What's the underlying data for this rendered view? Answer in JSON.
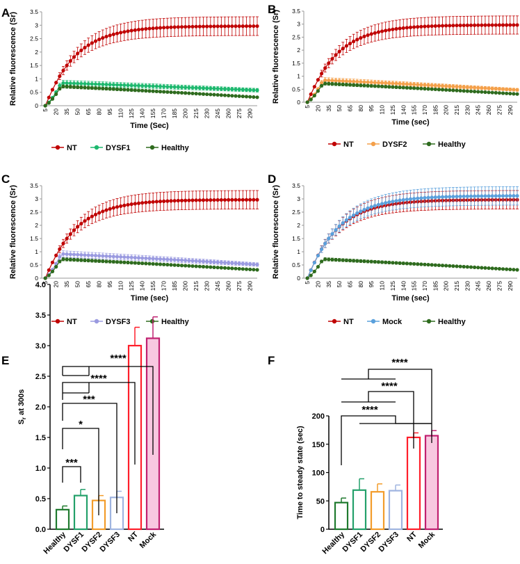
{
  "colors": {
    "NT": "#c00000",
    "Healthy": "#2e6b1e",
    "DYSF1": "#1db86e",
    "DYSF2": "#f4a04a",
    "DYSF3": "#9a9ae0",
    "Mock": "#5aa0dc",
    "bar_healthy": "#1f7a2e",
    "bar_dysf1": "#23a06a",
    "bar_dysf2": "#f39c2a",
    "bar_dysf3": "#9fb4e0",
    "bar_nt": "#ff1e2a",
    "bar_mock": "#c02070",
    "bar_mock_fill": "#f8c8e0"
  },
  "chart_data": [
    {
      "panel": "A",
      "type": "line",
      "ylabel": "Relative fluorescence (Sr)",
      "xlabel": "Time (Sec)",
      "ylim": [
        0,
        3.5
      ],
      "yticks": [
        "0",
        "0.5",
        "1",
        "1.5",
        "2",
        "2.5",
        "3",
        "3.5"
      ],
      "xticks": [
        "5",
        "20",
        "35",
        "50",
        "65",
        "80",
        "95",
        "110",
        "125",
        "140",
        "155",
        "170",
        "185",
        "200",
        "215",
        "230",
        "245",
        "260",
        "275",
        "290"
      ],
      "x_range": [
        0,
        300
      ],
      "series": [
        {
          "name": "NT",
          "key": "NT",
          "plateau": 2.97,
          "tau": 42,
          "err": 0.35
        },
        {
          "name": "DYSF1",
          "key": "DYSF1",
          "peak": 0.85,
          "end": 0.58,
          "err": 0.1
        },
        {
          "name": "Healthy",
          "key": "Healthy",
          "peak": 0.72,
          "end": 0.32,
          "err": 0.06
        }
      ],
      "legend": [
        "NT",
        "DYSF1",
        "Healthy"
      ]
    },
    {
      "panel": "B",
      "type": "line",
      "ylabel": "Relative fluorescence (Sr)",
      "xlabel": "Time (sec)",
      "ylim": [
        0,
        3.5
      ],
      "yticks": [
        "0",
        "0.5",
        "1",
        "1.5",
        "2",
        "2.5",
        "3",
        "3.5"
      ],
      "xticks": [
        "5",
        "20",
        "35",
        "50",
        "65",
        "80",
        "95",
        "110",
        "125",
        "140",
        "155",
        "170",
        "185",
        "200",
        "215",
        "230",
        "245",
        "260",
        "275",
        "290"
      ],
      "x_range": [
        0,
        300
      ],
      "series": [
        {
          "name": "NT",
          "key": "NT",
          "plateau": 2.97,
          "tau": 42,
          "err": 0.35
        },
        {
          "name": "DYSF2",
          "key": "DYSF2",
          "peak": 0.85,
          "end": 0.48,
          "err": 0.1
        },
        {
          "name": "Healthy",
          "key": "Healthy",
          "peak": 0.72,
          "end": 0.32,
          "err": 0.06
        }
      ],
      "legend": [
        "NT",
        "DYSF2",
        "Healthy"
      ]
    },
    {
      "panel": "C",
      "type": "line",
      "ylabel": "Relative fluorescence (Sr)",
      "xlabel": "Time (sec)",
      "ylim": [
        0,
        3.5
      ],
      "yticks": [
        "0",
        "0.5",
        "1",
        "1.5",
        "2",
        "2.5",
        "3",
        "3.5"
      ],
      "xticks": [
        "5",
        "20",
        "35",
        "50",
        "65",
        "80",
        "95",
        "110",
        "125",
        "140",
        "155",
        "170",
        "185",
        "200",
        "215",
        "230",
        "245",
        "260",
        "275",
        "290"
      ],
      "x_range": [
        0,
        300
      ],
      "series": [
        {
          "name": "NT",
          "key": "NT",
          "plateau": 2.97,
          "tau": 42,
          "err": 0.35
        },
        {
          "name": "DYSF3",
          "key": "DYSF3",
          "peak": 0.92,
          "end": 0.52,
          "err": 0.12
        },
        {
          "name": "Healthy",
          "key": "Healthy",
          "peak": 0.72,
          "end": 0.32,
          "err": 0.06
        }
      ],
      "legend": [
        "NT",
        "DYSF3",
        "Healthy"
      ]
    },
    {
      "panel": "D",
      "type": "line",
      "ylabel": "Relative fluorescence (Sr)",
      "xlabel": "Time (sec)",
      "ylim": [
        0,
        3.5
      ],
      "yticks": [
        "0",
        "0.5",
        "1",
        "1.5",
        "2",
        "2.5",
        "3",
        "3.5"
      ],
      "xticks": [
        "5",
        "20",
        "35",
        "50",
        "65",
        "80",
        "95",
        "110",
        "125",
        "140",
        "155",
        "170",
        "185",
        "200",
        "215",
        "230",
        "245",
        "260",
        "275",
        "290"
      ],
      "x_range": [
        0,
        300
      ],
      "series": [
        {
          "name": "NT",
          "key": "NT",
          "plateau": 2.97,
          "tau": 42,
          "err": 0.35
        },
        {
          "name": "Mock",
          "key": "Mock",
          "plateau": 3.12,
          "tau": 45,
          "err": 0.35
        },
        {
          "name": "Healthy",
          "key": "Healthy",
          "peak": 0.72,
          "end": 0.32,
          "err": 0.06
        }
      ],
      "legend": [
        "NT",
        "Mock",
        "Healthy"
      ]
    },
    {
      "panel": "E",
      "type": "bar",
      "ylabel": "Sr at 300s",
      "ylabel_main": "S",
      "ylabel_sub": "r",
      "ylabel_rest": " at 300s",
      "ylim": [
        0,
        4.0
      ],
      "yticks": [
        "0.0",
        "0.5",
        "1.0",
        "1.5",
        "2.0",
        "2.5",
        "3.0",
        "3.5",
        "4.0"
      ],
      "categories": [
        "Healthy",
        "DYSF1",
        "DYSF2",
        "DYSF3",
        "NT",
        "Mock"
      ],
      "values": [
        0.32,
        0.55,
        0.47,
        0.52,
        3.0,
        3.12
      ],
      "errors": [
        0.06,
        0.1,
        0.08,
        0.1,
        0.3,
        0.35
      ],
      "significance": [
        {
          "label": "***",
          "from": [
            0
          ],
          "to": 1
        },
        {
          "label": "*",
          "from": [
            0
          ],
          "to": 2
        },
        {
          "label": "***",
          "from": [
            0
          ],
          "to": 3
        },
        {
          "label": "****",
          "from": [
            0,
            1
          ],
          "to": 4
        },
        {
          "label": "****",
          "from": [
            0,
            1
          ],
          "to": 5
        }
      ]
    },
    {
      "panel": "F",
      "type": "bar",
      "ylabel": "Time to steady state (sec)",
      "ylim": [
        0,
        200
      ],
      "yticks": [
        "0",
        "50",
        "100",
        "150",
        "200"
      ],
      "categories": [
        "Healthy",
        "DYSF1",
        "DYSF2",
        "DYSF3",
        "NT",
        "Mock"
      ],
      "values": [
        47,
        69,
        66,
        68,
        162,
        165
      ],
      "errors": [
        8,
        20,
        14,
        10,
        8,
        9
      ],
      "significance": [
        {
          "label": "****",
          "from": [
            0,
            1
          ],
          "to": 4
        },
        {
          "label": "****",
          "from": [
            0,
            1
          ],
          "to": 5
        },
        {
          "label": "****",
          "from": [
            0,
            1,
            2,
            3
          ],
          "to": 4
        },
        {
          "label": "****",
          "from": [
            0,
            1,
            2,
            3
          ],
          "to": 5
        }
      ]
    }
  ]
}
